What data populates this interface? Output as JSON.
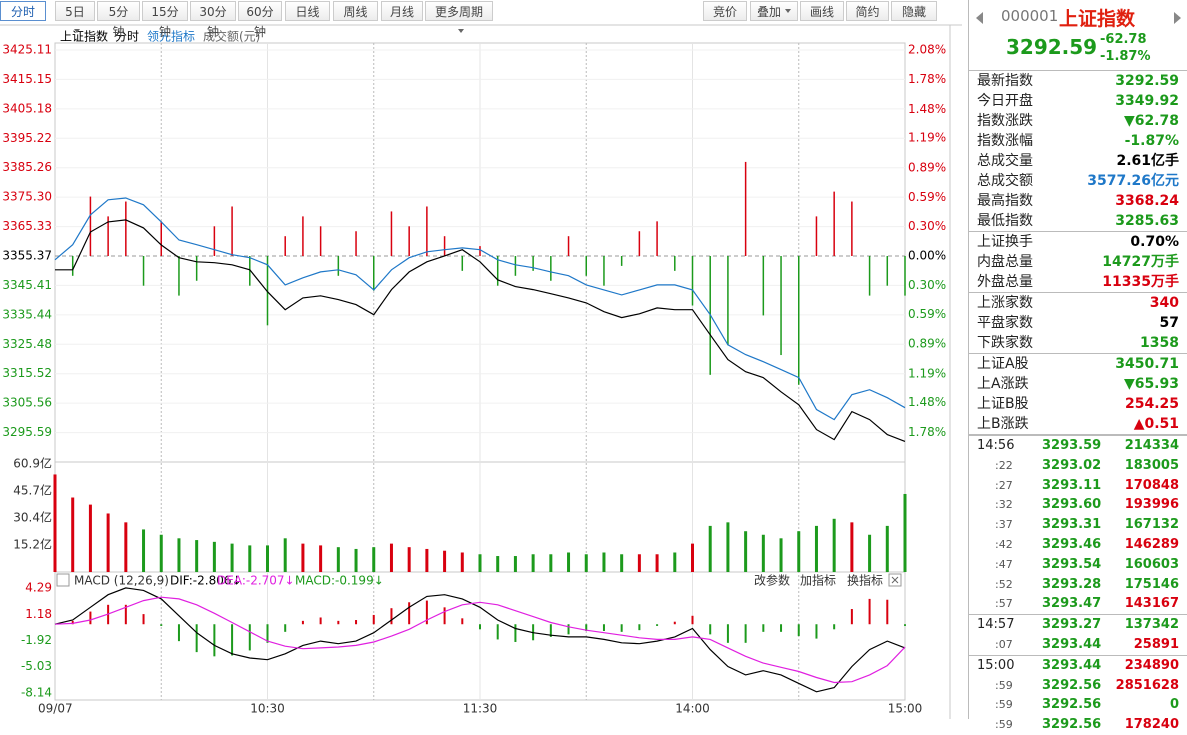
{
  "toolbar": {
    "tabs": [
      {
        "label": "分时"
      },
      {
        "label": "5日",
        "dropdown": true
      },
      {
        "label": "5分钟"
      },
      {
        "label": "15分钟"
      },
      {
        "label": "30分钟"
      },
      {
        "label": "60分钟"
      },
      {
        "label": "日线"
      },
      {
        "label": "周线"
      },
      {
        "label": "月线"
      },
      {
        "label": "更多周期",
        "dropdown": true
      }
    ],
    "active": 0,
    "tools": [
      {
        "label": "竞价"
      },
      {
        "label": "叠加",
        "dropdown": true
      },
      {
        "label": "画线"
      },
      {
        "label": "简约"
      },
      {
        "label": "隐藏"
      }
    ]
  },
  "chart_data": [
    {
      "type": "line",
      "mode": "分时",
      "series": [
        {
          "name": "上证指数",
          "color": "#000000",
          "values": [
            3350.7,
            3350.7,
            3363.5,
            3366.9,
            3367.6,
            3364.9,
            3359.1,
            3354.8,
            3353.4,
            3353.1,
            3352.4,
            3350.7,
            3343.3,
            3337.2,
            3341.2,
            3341.9,
            3340.6,
            3338.9,
            3335.5,
            3344.0,
            3350.0,
            3353.4,
            3355.4,
            3357.5,
            3353.4,
            3347.3,
            3345.0,
            3344.0,
            3342.6,
            3341.2,
            3339.5,
            3336.5,
            3334.5,
            3335.8,
            3337.8,
            3337.2,
            3337.2,
            3328.7,
            3320.3,
            3316.2,
            3314.2,
            3309.4,
            3305.0,
            3296.6,
            3293.2,
            3302.7,
            3300.0,
            3294.9,
            3292.59
          ]
        },
        {
          "name": "领先指标",
          "color": "#1f78c8",
          "values": [
            3354.1,
            3359.2,
            3369.3,
            3374.4,
            3375.0,
            3372.7,
            3366.9,
            3360.8,
            3359.2,
            3357.5,
            3355.8,
            3354.8,
            3352.4,
            3345.6,
            3348.0,
            3350.0,
            3350.7,
            3349.0,
            3343.9,
            3350.7,
            3354.8,
            3356.8,
            3357.5,
            3358.1,
            3357.5,
            3354.1,
            3352.4,
            3351.4,
            3350.0,
            3348.7,
            3345.6,
            3343.9,
            3342.2,
            3343.9,
            3345.6,
            3345.6,
            3343.9,
            3335.5,
            3325.3,
            3322.0,
            3319.6,
            3316.9,
            3314.2,
            3303.4,
            3300.0,
            3308.4,
            3310.1,
            3307.4,
            3304.0
          ]
        }
      ],
      "bars": {
        "axis": "y2",
        "values": [
          0,
          -0.2,
          0.6,
          0.4,
          0.55,
          -0.3,
          0.35,
          -0.4,
          -0.25,
          0.3,
          0.5,
          -0.3,
          -0.7,
          0.2,
          0.4,
          0.3,
          -0.2,
          0.25,
          -0.35,
          0.45,
          0.3,
          0.5,
          0.2,
          -0.15,
          0.1,
          -0.3,
          -0.2,
          -0.15,
          -0.25,
          0.2,
          -0.2,
          -0.3,
          -0.1,
          0.25,
          0.35,
          -0.15,
          -0.5,
          -1.2,
          -0.9,
          0.95,
          -0.6,
          -1.0,
          -1.3,
          0.4,
          0.65,
          0.55,
          -0.4,
          -0.3,
          -0.4
        ]
      },
      "up_color": "#d8000f",
      "down_color": "#1c9a1c",
      "ylim": [
        3285.63,
        3425.11
      ],
      "yticks": [
        3425.11,
        3415.15,
        3405.18,
        3395.22,
        3385.26,
        {
          "value": 3375.3,
          "label": "3375.30"
        },
        3365.33,
        3355.37,
        3345.41,
        3335.44,
        3325.48,
        3315.52,
        3305.56,
        3295.59
      ],
      "y2lim": [
        -2.08,
        2.08
      ],
      "y2ticks": [
        {
          "value": 2.08,
          "label": "2.08%"
        },
        {
          "value": 1.78,
          "label": "1.78%"
        },
        {
          "value": 1.48,
          "label": "1.48%"
        },
        {
          "value": 1.19,
          "label": "1.19%"
        },
        {
          "value": 0.89,
          "label": "0.89%"
        },
        {
          "value": 0.59,
          "label": "0.59%"
        },
        {
          "value": 0.3,
          "label": "0.30%"
        },
        {
          "value": 0,
          "label": "0.00%"
        },
        {
          "value": -0.3,
          "label": "0.30%"
        },
        {
          "value": -0.59,
          "label": "0.59%"
        },
        {
          "value": -0.89,
          "label": "0.89%"
        },
        {
          "value": -1.19,
          "label": "1.19%"
        },
        {
          "value": -1.48,
          "label": "1.48%"
        },
        {
          "value": -1.78,
          "label": "1.78%"
        }
      ]
    },
    {
      "type": "bar",
      "title": "成交额(元)",
      "values": [
        55,
        42,
        38,
        33,
        28,
        24,
        21,
        19,
        18,
        17,
        16,
        15,
        15,
        19,
        16,
        15,
        14,
        13,
        14,
        16,
        14,
        13,
        12,
        11,
        10,
        9,
        9,
        10,
        10,
        11,
        10,
        11,
        10,
        10,
        10,
        11,
        16,
        26,
        28,
        23,
        21,
        19,
        23,
        26,
        30,
        28,
        21,
        26,
        44
      ],
      "ylim": [
        0,
        60.9
      ],
      "yticks": [
        {
          "value": 60.9,
          "label": "60.9亿"
        },
        {
          "value": 45.7,
          "label": "45.7亿"
        },
        {
          "value": 30.4,
          "label": "30.4亿"
        },
        {
          "value": 15.2,
          "label": "15.2亿"
        }
      ]
    },
    {
      "type": "line",
      "title": "MACD (12,26,9)",
      "readouts": [
        "DIF:-2.806↓",
        "DEA:-2.707↓",
        "MACD:-0.199↓"
      ],
      "buttons": [
        "改参数",
        "加指标",
        "换指标"
      ],
      "series": [
        {
          "color": "#000000",
          "values": [
            0,
            0.5,
            2,
            3.5,
            4.3,
            4,
            3,
            1,
            -1,
            -2.5,
            -3.5,
            -4,
            -4.2,
            -3.5,
            -2.5,
            -2,
            -2.3,
            -2,
            -1,
            0.5,
            2,
            3.3,
            3.5,
            3,
            2,
            0.5,
            -0.5,
            -1,
            -1.3,
            -1.5,
            -1.5,
            -1.8,
            -2.2,
            -2.3,
            -2,
            -1.5,
            -0.5,
            -3,
            -5,
            -6,
            -5.5,
            -6,
            -7,
            -8,
            -7.5,
            -5,
            -3,
            -2,
            -2.806
          ]
        },
        {
          "color": "#e020e0",
          "values": [
            0,
            0.1,
            0.5,
            1.2,
            2,
            2.8,
            3.2,
            3,
            2.3,
            1.3,
            0.2,
            -0.9,
            -2,
            -2.6,
            -2.9,
            -2.8,
            -2.7,
            -2.5,
            -2.1,
            -1.4,
            -0.6,
            0.5,
            1.5,
            2.3,
            2.6,
            2.3,
            1.6,
            0.9,
            0.2,
            -0.3,
            -0.7,
            -1,
            -1.3,
            -1.6,
            -1.8,
            -1.8,
            -1.5,
            -1.8,
            -2.8,
            -3.8,
            -4.6,
            -5.1,
            -5.6,
            -6.3,
            -6.9,
            -6.8,
            -6,
            -4.9,
            -2.707
          ]
        }
      ],
      "histogram": {
        "values": [
          0,
          0.4,
          1.5,
          2.3,
          2.3,
          1.2,
          -0.2,
          -2,
          -3.3,
          -3.8,
          -3.7,
          -3.1,
          -2.2,
          -0.9,
          0.4,
          0.8,
          0.4,
          0.5,
          1.1,
          1.9,
          2.6,
          2.8,
          2,
          0.7,
          -0.6,
          -1.8,
          -2.1,
          -1.9,
          -1.5,
          -1.2,
          -0.8,
          -0.8,
          -0.9,
          -0.7,
          -0.2,
          0.3,
          1,
          -1.2,
          -2.2,
          -2.2,
          -0.9,
          -0.9,
          -1.4,
          -1.7,
          -0.6,
          1.8,
          3,
          2.9,
          -0.199
        ]
      },
      "ylim": [
        -8.14,
        4.29
      ],
      "yticks": [
        4.29,
        1.18,
        -1.92,
        -5.03,
        -8.14
      ],
      "x_labels": [
        "09/07",
        "10:30",
        "11:30",
        "14:00",
        "15:00"
      ]
    }
  ],
  "quote": {
    "code": "000001",
    "name": "上证指数",
    "price": "3292.59",
    "change": "-62.78",
    "change_pct": "-1.87%",
    "groups": [
      [
        {
          "label": "最新指数",
          "value": "3292.59",
          "color": "#1c9a1c"
        },
        {
          "label": "今日开盘",
          "value": "3349.92",
          "color": "#1c9a1c"
        },
        {
          "label": "指数涨跌",
          "value": "▼62.78",
          "color": "#1c9a1c"
        },
        {
          "label": "指数涨幅",
          "value": "-1.87%",
          "color": "#1c9a1c"
        },
        {
          "label": "总成交量",
          "value": "2.61亿手",
          "color": "#000000"
        },
        {
          "label": "总成交额",
          "value": "3577.26亿元",
          "color": "#1f78c8"
        },
        {
          "label": "最高指数",
          "value": "3368.24",
          "color": "#d8000f"
        },
        {
          "label": "最低指数",
          "value": "3285.63",
          "color": "#1c9a1c"
        }
      ],
      [
        {
          "label": "上证换手",
          "value": "0.70%",
          "color": "#000000"
        },
        {
          "label": "内盘总量",
          "value": "14727万手",
          "color": "#1c9a1c"
        },
        {
          "label": "外盘总量",
          "value": "11335万手",
          "color": "#d8000f"
        }
      ],
      [
        {
          "label": "上涨家数",
          "value": "340",
          "color": "#d8000f"
        },
        {
          "label": "平盘家数",
          "value": "57",
          "color": "#000000"
        },
        {
          "label": "下跌家数",
          "value": "1358",
          "color": "#1c9a1c"
        }
      ],
      [
        {
          "label": "上证A股",
          "value": "3450.71",
          "color": "#1c9a1c"
        },
        {
          "label": "上A涨跌",
          "value": "▼65.93",
          "color": "#1c9a1c"
        },
        {
          "label": "上证B股",
          "value": "254.25",
          "color": "#d8000f"
        },
        {
          "label": "上B涨跌",
          "value": "▲0.51",
          "color": "#d8000f"
        }
      ]
    ],
    "trades": [
      [
        {
          "time": "14:56",
          "price": "3293.59",
          "volume": "214334",
          "color": "#1c9a1c"
        },
        {
          "time": ":22",
          "price": "3293.02",
          "volume": "183005",
          "color": "#1c9a1c"
        },
        {
          "time": ":27",
          "price": "3293.11",
          "volume": "170848",
          "color": "#d8000f"
        },
        {
          "time": ":32",
          "price": "3293.60",
          "volume": "193996",
          "color": "#d8000f"
        },
        {
          "time": ":37",
          "price": "3293.31",
          "volume": "167132",
          "color": "#1c9a1c"
        },
        {
          "time": ":42",
          "price": "3293.46",
          "volume": "146289",
          "color": "#d8000f"
        },
        {
          "time": ":47",
          "price": "3293.54",
          "volume": "160603",
          "color": "#1c9a1c"
        },
        {
          "time": ":52",
          "price": "3293.28",
          "volume": "175146",
          "color": "#1c9a1c"
        },
        {
          "time": ":57",
          "price": "3293.47",
          "volume": "143167",
          "color": "#d8000f"
        }
      ],
      [
        {
          "time": "14:57",
          "price": "3293.27",
          "volume": "137342",
          "color": "#1c9a1c"
        },
        {
          "time": ":07",
          "price": "3293.44",
          "volume": "25891",
          "color": "#d8000f"
        }
      ],
      [
        {
          "time": "15:00",
          "price": "3293.44",
          "volume": "234890",
          "color": "#d8000f"
        },
        {
          "time": ":59",
          "price": "3292.56",
          "volume": "2851628",
          "color": "#d8000f"
        },
        {
          "time": ":59",
          "price": "3292.56",
          "volume": "0",
          "color": "#1c9a1c"
        },
        {
          "time": ":59",
          "price": "3292.56",
          "volume": "178240",
          "color": "#d8000f"
        }
      ]
    ]
  }
}
